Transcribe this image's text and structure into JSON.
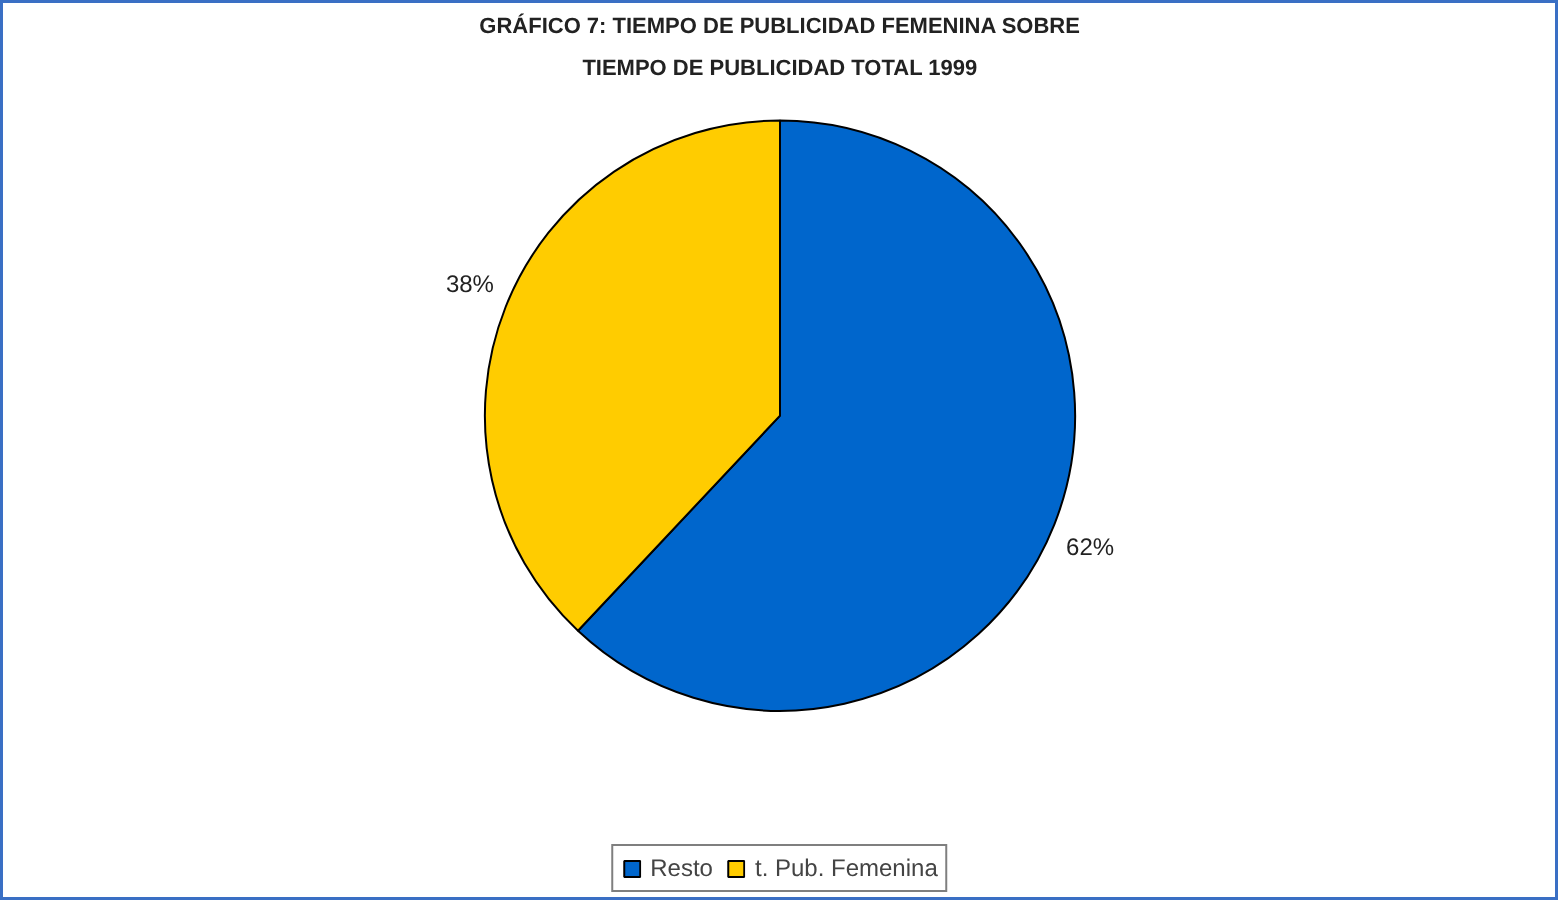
{
  "chart_data": {
    "type": "pie",
    "title": "GRÁFICO 7: TIEMPO DE PUBLICIDAD FEMENINA SOBRE TIEMPO DE PUBLICIDAD TOTAL 1999",
    "categories": [
      "Resto",
      "t. Pub. Femenina"
    ],
    "values": [
      62,
      38
    ],
    "colors": [
      "#0066cc",
      "#ffcc00"
    ],
    "value_labels": [
      "62%",
      "38%"
    ],
    "legend": "bottom"
  }
}
